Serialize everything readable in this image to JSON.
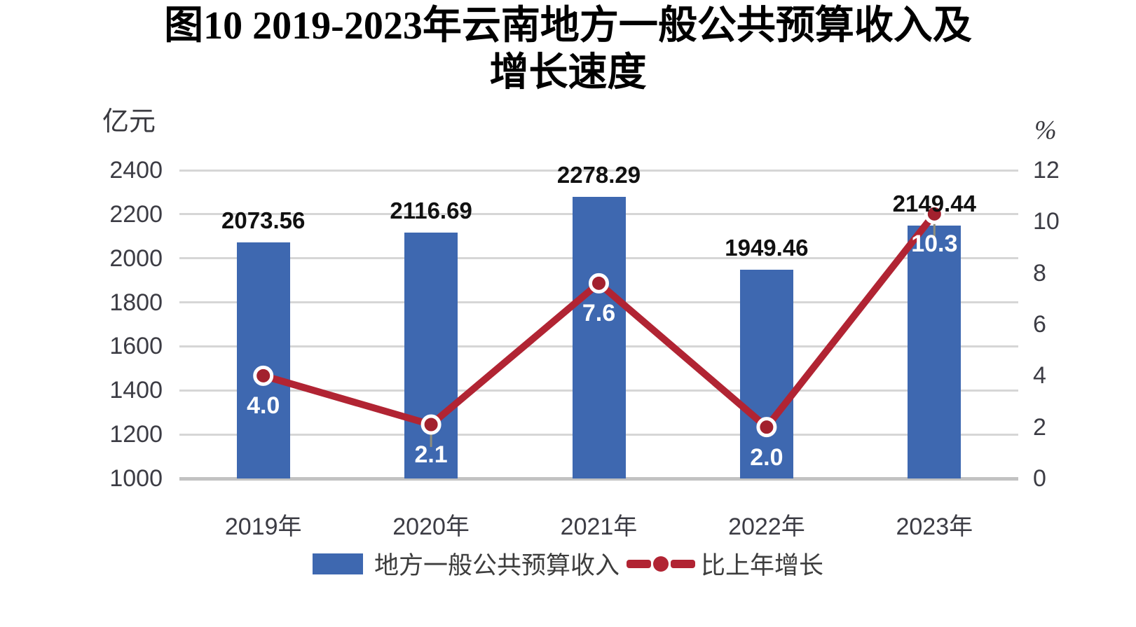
{
  "figure": {
    "title_line1": "图10 2019-2023年云南地方一般公共预算收入及",
    "title_line2": "增长速度"
  },
  "chart_data": {
    "type": "bar+line combo",
    "title": "图10 2019-2023年云南地方一般公共预算收入及增长速度",
    "categories": [
      "2019年",
      "2020年",
      "2021年",
      "2022年",
      "2023年"
    ],
    "series": [
      {
        "name": "地方一般公共预算收入",
        "type": "bar",
        "axis": "left",
        "unit": "亿元",
        "color": "#3e68b0",
        "values": [
          2073.56,
          2116.69,
          2278.29,
          1949.46,
          2149.44
        ],
        "label_decimals": 2
      },
      {
        "name": "比上年增长",
        "type": "line",
        "axis": "right",
        "unit": "%",
        "color": "#b12433",
        "marker_fill": "#a2212e",
        "marker_ring": "#ffffff",
        "values": [
          4.0,
          2.1,
          7.6,
          2.0,
          10.3
        ],
        "label_decimals": 1
      }
    ],
    "left_axis": {
      "unit_label": "亿元",
      "min": 1000,
      "max": 2400,
      "step": 200,
      "ticks": [
        2400,
        2200,
        2000,
        1800,
        1600,
        1400,
        1200,
        1000
      ]
    },
    "right_axis": {
      "unit_label": "%",
      "min": 0,
      "max": 12,
      "step": 2,
      "ticks": [
        12,
        10,
        8,
        6,
        4,
        2,
        0
      ]
    },
    "gridlines": "horizontal",
    "legend_position": "bottom",
    "label_leader_indices": [
      1,
      4
    ]
  },
  "legend": {
    "bar_label": "地方一般公共预算收入",
    "line_label": "比上年增长"
  },
  "colors": {
    "bar": "#3e68b0",
    "line": "#b12433",
    "marker_fill": "#a2212e",
    "marker_ring": "#ffffff",
    "leader": "#8e8e7d",
    "gridline": "#d6d6d6",
    "axis_line": "#c2c2c2",
    "tick_text": "#3c3c44",
    "value_label_text": "#111111",
    "growth_label_text": "#ffffff",
    "background": "#ffffff"
  }
}
